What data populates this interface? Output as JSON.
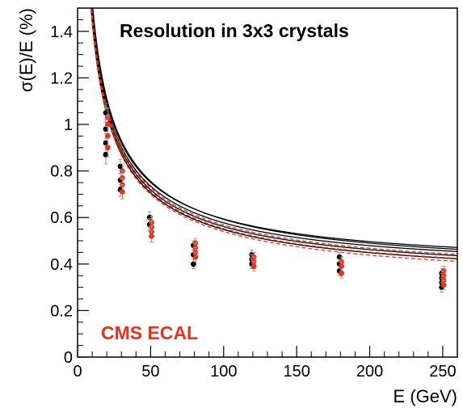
{
  "chart_data": {
    "type": "scatter",
    "title": "Resolution in 3x3 crystals",
    "xlabel": "E (GeV)",
    "ylabel": "σ(E)/E (%)",
    "annotation": "CMS ECAL",
    "xlim": [
      0,
      260
    ],
    "ylim": [
      0,
      1.5
    ],
    "xticks": [
      0,
      50,
      100,
      150,
      200,
      250
    ],
    "yticks": [
      0,
      0.2,
      0.4,
      0.6,
      0.8,
      1,
      1.2,
      1.4
    ],
    "ytick_labels": [
      "0",
      "0.2",
      "0.4",
      "0.6",
      "0.8",
      "1",
      "1.2",
      "1.4"
    ],
    "grid": false,
    "colors": {
      "black": "#000000",
      "red": "#e8321e",
      "error": "#999999"
    },
    "series": [
      {
        "color": "black",
        "points": [
          {
            "x": 20,
            "y": 1.05,
            "err": 0.04
          },
          {
            "x": 20,
            "y": 0.98,
            "err": 0.04
          },
          {
            "x": 20,
            "y": 0.92,
            "err": 0.04
          },
          {
            "x": 20,
            "y": 0.87,
            "err": 0.04
          },
          {
            "x": 30,
            "y": 0.82,
            "err": 0.03
          },
          {
            "x": 30,
            "y": 0.76,
            "err": 0.03
          },
          {
            "x": 30,
            "y": 0.72,
            "err": 0.03
          },
          {
            "x": 50,
            "y": 0.6,
            "err": 0.025
          },
          {
            "x": 50,
            "y": 0.57,
            "err": 0.025
          },
          {
            "x": 80,
            "y": 0.48,
            "err": 0.02
          },
          {
            "x": 80,
            "y": 0.44,
            "err": 0.02
          },
          {
            "x": 80,
            "y": 0.4,
            "err": 0.02
          },
          {
            "x": 120,
            "y": 0.44,
            "err": 0.02
          },
          {
            "x": 120,
            "y": 0.42,
            "err": 0.02
          },
          {
            "x": 120,
            "y": 0.4,
            "err": 0.02
          },
          {
            "x": 180,
            "y": 0.43,
            "err": 0.02
          },
          {
            "x": 180,
            "y": 0.4,
            "err": 0.02
          },
          {
            "x": 180,
            "y": 0.37,
            "err": 0.02
          },
          {
            "x": 250,
            "y": 0.36,
            "err": 0.02
          },
          {
            "x": 250,
            "y": 0.34,
            "err": 0.02
          },
          {
            "x": 250,
            "y": 0.32,
            "err": 0.02
          },
          {
            "x": 250,
            "y": 0.3,
            "err": 0.02
          }
        ]
      },
      {
        "color": "red",
        "points": [
          {
            "x": 20,
            "y": 1.03,
            "err": 0.04
          },
          {
            "x": 20,
            "y": 1.0,
            "err": 0.04
          },
          {
            "x": 20,
            "y": 0.95,
            "err": 0.04
          },
          {
            "x": 20,
            "y": 0.9,
            "err": 0.04
          },
          {
            "x": 30,
            "y": 0.8,
            "err": 0.03
          },
          {
            "x": 30,
            "y": 0.77,
            "err": 0.03
          },
          {
            "x": 30,
            "y": 0.74,
            "err": 0.03
          },
          {
            "x": 30,
            "y": 0.71,
            "err": 0.03
          },
          {
            "x": 50,
            "y": 0.58,
            "err": 0.025
          },
          {
            "x": 50,
            "y": 0.56,
            "err": 0.025
          },
          {
            "x": 50,
            "y": 0.54,
            "err": 0.025
          },
          {
            "x": 50,
            "y": 0.52,
            "err": 0.025
          },
          {
            "x": 80,
            "y": 0.49,
            "err": 0.02
          },
          {
            "x": 80,
            "y": 0.47,
            "err": 0.02
          },
          {
            "x": 80,
            "y": 0.45,
            "err": 0.02
          },
          {
            "x": 80,
            "y": 0.43,
            "err": 0.02
          },
          {
            "x": 120,
            "y": 0.43,
            "err": 0.02
          },
          {
            "x": 120,
            "y": 0.41,
            "err": 0.02
          },
          {
            "x": 120,
            "y": 0.39,
            "err": 0.02
          },
          {
            "x": 180,
            "y": 0.41,
            "err": 0.02
          },
          {
            "x": 180,
            "y": 0.39,
            "err": 0.02
          },
          {
            "x": 180,
            "y": 0.36,
            "err": 0.02
          },
          {
            "x": 250,
            "y": 0.37,
            "err": 0.02
          },
          {
            "x": 250,
            "y": 0.35,
            "err": 0.02
          },
          {
            "x": 250,
            "y": 0.33,
            "err": 0.02
          },
          {
            "x": 250,
            "y": 0.31,
            "err": 0.02
          }
        ]
      }
    ],
    "fits": [
      {
        "color": "black",
        "style": "solid",
        "a": 4.5,
        "c": 0.335
      },
      {
        "color": "black",
        "style": "solid",
        "a": 4.55,
        "c": 0.355
      },
      {
        "color": "black",
        "style": "solid",
        "a": 4.6,
        "c": 0.375
      },
      {
        "color": "black",
        "style": "solid",
        "a": 4.45,
        "c": 0.32
      },
      {
        "color": "black",
        "style": "solid",
        "a": 4.7,
        "c": 0.36
      },
      {
        "color": "red",
        "style": "dashed",
        "a": 4.5,
        "c": 0.32
      },
      {
        "color": "red",
        "style": "dashed",
        "a": 4.45,
        "c": 0.305
      },
      {
        "color": "red",
        "style": "dashed",
        "a": 4.55,
        "c": 0.34
      }
    ]
  }
}
